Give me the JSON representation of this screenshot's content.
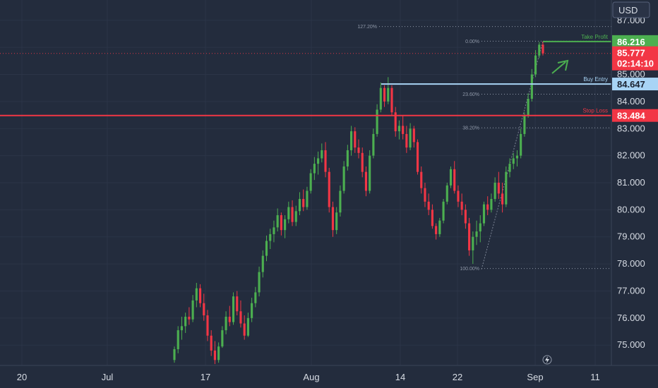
{
  "currency": "USD",
  "colors": {
    "up": "#22ab94",
    "up_green": "#4caf50",
    "down": "#f23645",
    "take_profit": "#4caf50",
    "buy_entry": "#a8d4f5",
    "stop_loss": "#f23645",
    "fib": "#8f98a8"
  },
  "chart_data": {
    "type": "candlestick",
    "ylim": [
      74.25,
      87.75
    ],
    "y_ticks": [
      "75.000",
      "76.000",
      "77.000",
      "78.000",
      "79.000",
      "80.000",
      "81.000",
      "82.000",
      "83.000",
      "84.000",
      "85.000",
      "86.000",
      "87.000"
    ],
    "x_ticks": [
      "20",
      "Jul",
      "17",
      "Aug",
      "14",
      "22",
      "Sep",
      "11"
    ],
    "swing_low": 77.8,
    "swing_high": 86.23,
    "current_price": "85.777",
    "countdown": "02:14:10",
    "levels": {
      "take_profit": {
        "label": "Take Profit",
        "price": "86.216",
        "value": 86.216
      },
      "buy_entry": {
        "label": "Buy Entry",
        "price": "84.647",
        "value": 84.647
      },
      "stop_loss": {
        "label": "Stop Loss",
        "price": "83.484",
        "value": 83.484
      }
    },
    "fib_levels": [
      {
        "label": "127.20%",
        "value": 86.77
      },
      {
        "label": "0.00%",
        "value": 86.23
      },
      {
        "label": "23.60%",
        "value": 84.27
      },
      {
        "label": "38.20%",
        "value": 83.03
      },
      {
        "label": "100.00%",
        "value": 77.83
      }
    ],
    "candles": [
      [
        74.45,
        74.95,
        74.35,
        74.85
      ],
      [
        74.85,
        75.7,
        74.7,
        75.55
      ],
      [
        75.55,
        76.05,
        75.2,
        75.7
      ],
      [
        75.7,
        76.2,
        75.45,
        76.05
      ],
      [
        76.05,
        76.4,
        75.75,
        75.95
      ],
      [
        75.95,
        76.85,
        75.85,
        76.65
      ],
      [
        76.65,
        77.3,
        76.4,
        77.1
      ],
      [
        77.1,
        77.25,
        76.4,
        76.55
      ],
      [
        76.55,
        76.9,
        75.9,
        76.1
      ],
      [
        76.1,
        76.3,
        75.15,
        75.35
      ],
      [
        75.35,
        75.55,
        74.6,
        74.8
      ],
      [
        74.8,
        75.15,
        74.3,
        74.45
      ],
      [
        74.45,
        75.1,
        74.35,
        74.95
      ],
      [
        74.95,
        75.7,
        74.9,
        75.55
      ],
      [
        75.55,
        76.25,
        75.4,
        76.05
      ],
      [
        76.05,
        76.45,
        75.7,
        75.85
      ],
      [
        75.85,
        76.95,
        75.75,
        76.8
      ],
      [
        76.8,
        77.0,
        76.1,
        76.25
      ],
      [
        76.25,
        76.65,
        75.65,
        75.8
      ],
      [
        75.8,
        76.1,
        75.2,
        75.35
      ],
      [
        75.35,
        76.2,
        75.3,
        76.0
      ],
      [
        76.0,
        76.75,
        75.85,
        76.55
      ],
      [
        76.55,
        77.15,
        76.4,
        76.95
      ],
      [
        76.95,
        77.9,
        76.8,
        77.7
      ],
      [
        77.7,
        78.5,
        77.5,
        78.3
      ],
      [
        78.3,
        79.05,
        78.1,
        78.85
      ],
      [
        78.85,
        79.3,
        78.55,
        79.1
      ],
      [
        79.1,
        79.6,
        78.8,
        79.35
      ],
      [
        79.35,
        80.05,
        79.2,
        79.8
      ],
      [
        79.8,
        79.9,
        79.05,
        79.25
      ],
      [
        79.25,
        79.8,
        78.95,
        79.65
      ],
      [
        79.65,
        80.3,
        79.5,
        80.1
      ],
      [
        80.1,
        80.35,
        79.4,
        79.55
      ],
      [
        79.55,
        80.15,
        79.4,
        79.95
      ],
      [
        79.95,
        80.65,
        79.8,
        80.4
      ],
      [
        80.4,
        80.75,
        79.95,
        80.1
      ],
      [
        80.1,
        80.85,
        80.0,
        80.7
      ],
      [
        80.7,
        81.5,
        80.6,
        81.35
      ],
      [
        81.35,
        81.95,
        81.1,
        81.7
      ],
      [
        81.7,
        82.15,
        81.3,
        81.9
      ],
      [
        81.9,
        82.45,
        81.75,
        82.2
      ],
      [
        82.2,
        82.5,
        81.2,
        81.4
      ],
      [
        81.4,
        81.55,
        79.9,
        80.1
      ],
      [
        80.1,
        80.3,
        79.0,
        79.25
      ],
      [
        79.25,
        80.1,
        79.1,
        79.9
      ],
      [
        79.9,
        80.9,
        79.75,
        80.7
      ],
      [
        80.7,
        81.8,
        80.6,
        81.6
      ],
      [
        81.6,
        82.4,
        81.45,
        82.2
      ],
      [
        82.2,
        83.1,
        82.0,
        82.9
      ],
      [
        82.9,
        83.05,
        82.1,
        82.3
      ],
      [
        82.3,
        82.6,
        81.9,
        82.1
      ],
      [
        82.1,
        82.3,
        81.2,
        81.4
      ],
      [
        81.4,
        81.6,
        80.5,
        80.7
      ],
      [
        80.7,
        82.2,
        80.6,
        82.0
      ],
      [
        82.0,
        83.0,
        81.9,
        82.8
      ],
      [
        82.8,
        83.9,
        82.7,
        83.7
      ],
      [
        83.7,
        84.7,
        83.6,
        84.5
      ],
      [
        84.5,
        84.6,
        83.8,
        84.0
      ],
      [
        84.0,
        84.9,
        83.9,
        84.5
      ],
      [
        84.5,
        84.6,
        83.5,
        83.6
      ],
      [
        83.6,
        83.8,
        82.7,
        82.9
      ],
      [
        82.9,
        83.3,
        82.6,
        83.1
      ],
      [
        83.1,
        83.5,
        82.6,
        82.8
      ],
      [
        82.8,
        83.1,
        82.1,
        82.3
      ],
      [
        82.3,
        83.2,
        82.2,
        83.0
      ],
      [
        83.0,
        83.1,
        82.3,
        82.5
      ],
      [
        82.5,
        82.6,
        81.3,
        81.4
      ],
      [
        81.4,
        81.6,
        80.6,
        80.8
      ],
      [
        80.8,
        81.0,
        80.1,
        80.3
      ],
      [
        80.3,
        80.6,
        79.8,
        80.0
      ],
      [
        80.0,
        80.2,
        79.3,
        79.4
      ],
      [
        79.4,
        79.5,
        78.9,
        79.1
      ],
      [
        79.1,
        79.7,
        79.0,
        79.6
      ],
      [
        79.6,
        80.4,
        79.5,
        80.3
      ],
      [
        80.3,
        81.0,
        80.2,
        80.9
      ],
      [
        80.9,
        81.6,
        80.8,
        81.5
      ],
      [
        81.5,
        81.8,
        80.6,
        80.7
      ],
      [
        80.7,
        80.9,
        80.1,
        80.3
      ],
      [
        80.3,
        80.6,
        79.8,
        80.0
      ],
      [
        80.0,
        80.2,
        79.3,
        79.5
      ],
      [
        79.5,
        79.7,
        78.3,
        78.5
      ],
      [
        78.5,
        79.2,
        78.0,
        79.0
      ],
      [
        79.0,
        79.6,
        78.7,
        79.2
      ],
      [
        79.2,
        79.8,
        78.8,
        79.5
      ],
      [
        79.5,
        80.3,
        79.4,
        80.2
      ],
      [
        80.2,
        80.5,
        79.8,
        80.0
      ],
      [
        80.0,
        80.6,
        79.9,
        80.4
      ],
      [
        80.4,
        81.2,
        80.3,
        81.0
      ],
      [
        81.0,
        81.4,
        80.4,
        80.6
      ],
      [
        80.6,
        81.0,
        79.9,
        80.2
      ],
      [
        80.2,
        81.6,
        80.1,
        81.4
      ],
      [
        81.4,
        81.9,
        81.2,
        81.7
      ],
      [
        81.7,
        82.1,
        81.5,
        81.9
      ],
      [
        81.9,
        82.2,
        81.6,
        82.0
      ],
      [
        82.0,
        83.0,
        81.9,
        82.8
      ],
      [
        82.8,
        83.6,
        82.7,
        83.5
      ],
      [
        83.5,
        84.3,
        83.4,
        84.1
      ],
      [
        84.1,
        85.2,
        84.0,
        85.0
      ],
      [
        85.0,
        85.9,
        84.9,
        85.7
      ],
      [
        85.7,
        86.2,
        85.6,
        86.1
      ],
      [
        86.1,
        86.23,
        85.7,
        85.777
      ]
    ]
  }
}
